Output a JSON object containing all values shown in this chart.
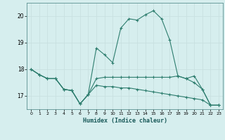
{
  "xlabel": "Humidex (Indice chaleur)",
  "ylabel": "",
  "bg_color": "#d6eeee",
  "grid_color": "#c8e0e0",
  "line_color": "#2d7d6e",
  "xlim": [
    -0.5,
    23.5
  ],
  "ylim": [
    16.5,
    20.5
  ],
  "yticks": [
    17,
    18,
    19,
    20
  ],
  "xticks": [
    0,
    1,
    2,
    3,
    4,
    5,
    6,
    7,
    8,
    9,
    10,
    11,
    12,
    13,
    14,
    15,
    16,
    17,
    18,
    19,
    20,
    21,
    22,
    23
  ],
  "series": [
    [
      18.0,
      17.8,
      17.65,
      17.65,
      17.25,
      17.2,
      16.7,
      17.05,
      18.8,
      18.55,
      18.25,
      19.55,
      19.9,
      19.85,
      20.05,
      20.2,
      19.9,
      19.1,
      17.75,
      17.65,
      17.5,
      17.25,
      16.65,
      16.65
    ],
    [
      18.0,
      17.8,
      17.65,
      17.65,
      17.25,
      17.2,
      16.7,
      17.05,
      17.65,
      17.7,
      17.7,
      17.7,
      17.7,
      17.7,
      17.7,
      17.7,
      17.7,
      17.7,
      17.75,
      17.65,
      17.75,
      17.25,
      16.65,
      16.65
    ],
    [
      18.0,
      17.8,
      17.65,
      17.65,
      17.25,
      17.2,
      16.7,
      17.05,
      17.4,
      17.35,
      17.35,
      17.3,
      17.3,
      17.25,
      17.2,
      17.15,
      17.1,
      17.05,
      17.0,
      16.95,
      16.9,
      16.85,
      16.65,
      16.65
    ]
  ]
}
